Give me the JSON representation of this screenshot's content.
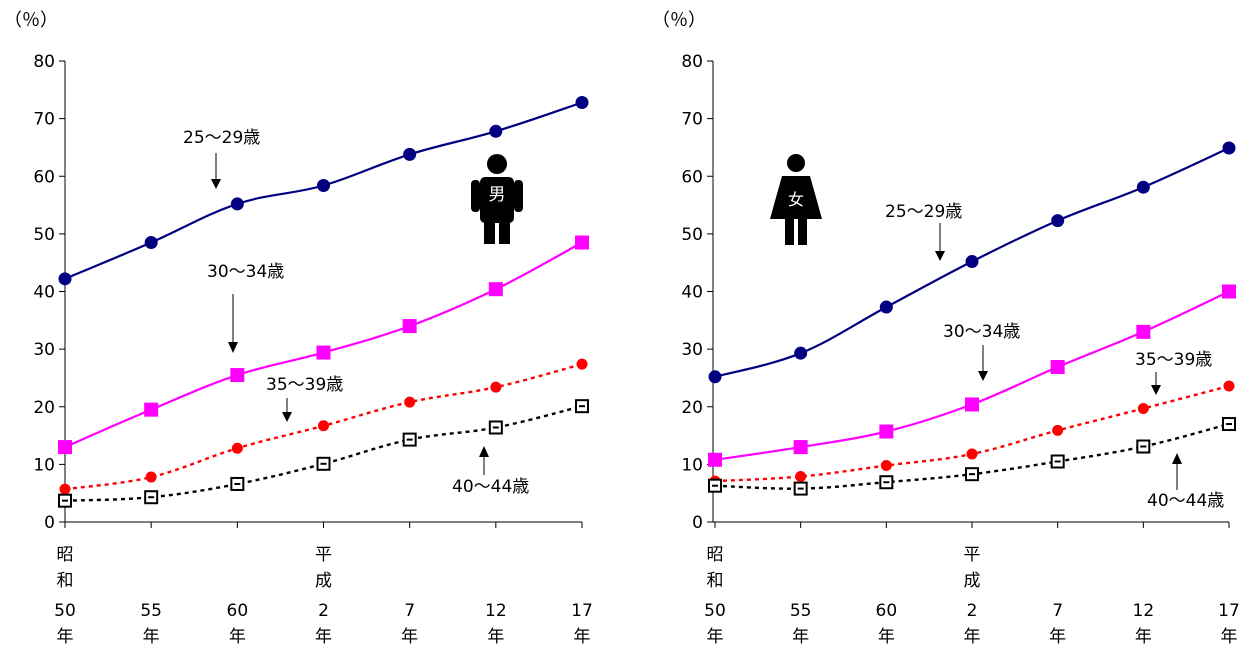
{
  "chart_data": [
    {
      "type": "line",
      "unit_label": "（％）",
      "ylim": [
        0,
        80
      ],
      "yticks": [
        0,
        10,
        20,
        30,
        40,
        50,
        60,
        70,
        80
      ],
      "x": [
        {
          "era": "昭和",
          "year": "50",
          "suffix": "年"
        },
        {
          "era": "",
          "year": "55",
          "suffix": "年"
        },
        {
          "era": "",
          "year": "60",
          "suffix": "年"
        },
        {
          "era": "平成",
          "year": "2",
          "suffix": "年"
        },
        {
          "era": "",
          "year": "7",
          "suffix": "年"
        },
        {
          "era": "",
          "year": "12",
          "suffix": "年"
        },
        {
          "era": "",
          "year": "17",
          "suffix": "年"
        }
      ],
      "gender_label": "男",
      "series": [
        {
          "name": "25～29歳",
          "values": [
            42.2,
            48.5,
            55.2,
            58.4,
            63.8,
            67.8,
            72.8
          ],
          "color": "#000080",
          "marker": "circle",
          "dash": "none"
        },
        {
          "name": "30～34歳",
          "values": [
            13.0,
            19.5,
            25.5,
            29.4,
            34.0,
            40.4,
            48.5
          ],
          "color": "#ff00ff",
          "marker": "square",
          "dash": "none"
        },
        {
          "name": "35～39歳",
          "values": [
            5.7,
            7.8,
            12.8,
            16.7,
            20.8,
            23.4,
            27.4
          ],
          "color": "#ff0000",
          "marker": "circle-small",
          "dash": "dash"
        },
        {
          "name": "40～44歳",
          "values": [
            3.7,
            4.3,
            6.6,
            10.1,
            14.3,
            16.4,
            20.1
          ],
          "color": "#000000",
          "marker": "square-open",
          "dash": "dash"
        }
      ]
    },
    {
      "type": "line",
      "unit_label": "（％）",
      "ylim": [
        0,
        80
      ],
      "yticks": [
        0,
        10,
        20,
        30,
        40,
        50,
        60,
        70,
        80
      ],
      "x": [
        {
          "era": "昭和",
          "year": "50",
          "suffix": "年"
        },
        {
          "era": "",
          "year": "55",
          "suffix": "年"
        },
        {
          "era": "",
          "year": "60",
          "suffix": "年"
        },
        {
          "era": "平成",
          "year": "2",
          "suffix": "年"
        },
        {
          "era": "",
          "year": "7",
          "suffix": "年"
        },
        {
          "era": "",
          "year": "12",
          "suffix": "年"
        },
        {
          "era": "",
          "year": "17",
          "suffix": "年"
        }
      ],
      "gender_label": "女",
      "series": [
        {
          "name": "25～29歳",
          "values": [
            25.2,
            29.3,
            37.3,
            45.2,
            52.3,
            58.1,
            64.9
          ],
          "color": "#000080",
          "marker": "circle",
          "dash": "none"
        },
        {
          "name": "30～34歳",
          "values": [
            10.8,
            13.0,
            15.7,
            20.4,
            26.9,
            33.0,
            40.0
          ],
          "color": "#ff00ff",
          "marker": "square",
          "dash": "none"
        },
        {
          "name": "35～39歳",
          "values": [
            7.1,
            7.9,
            9.8,
            11.8,
            15.9,
            19.7,
            23.6
          ],
          "color": "#ff0000",
          "marker": "circle-small",
          "dash": "dash"
        },
        {
          "name": "40～44歳",
          "values": [
            6.3,
            5.8,
            6.9,
            8.3,
            10.5,
            13.1,
            17.0
          ],
          "color": "#000000",
          "marker": "square-open",
          "dash": "dash"
        }
      ]
    }
  ]
}
